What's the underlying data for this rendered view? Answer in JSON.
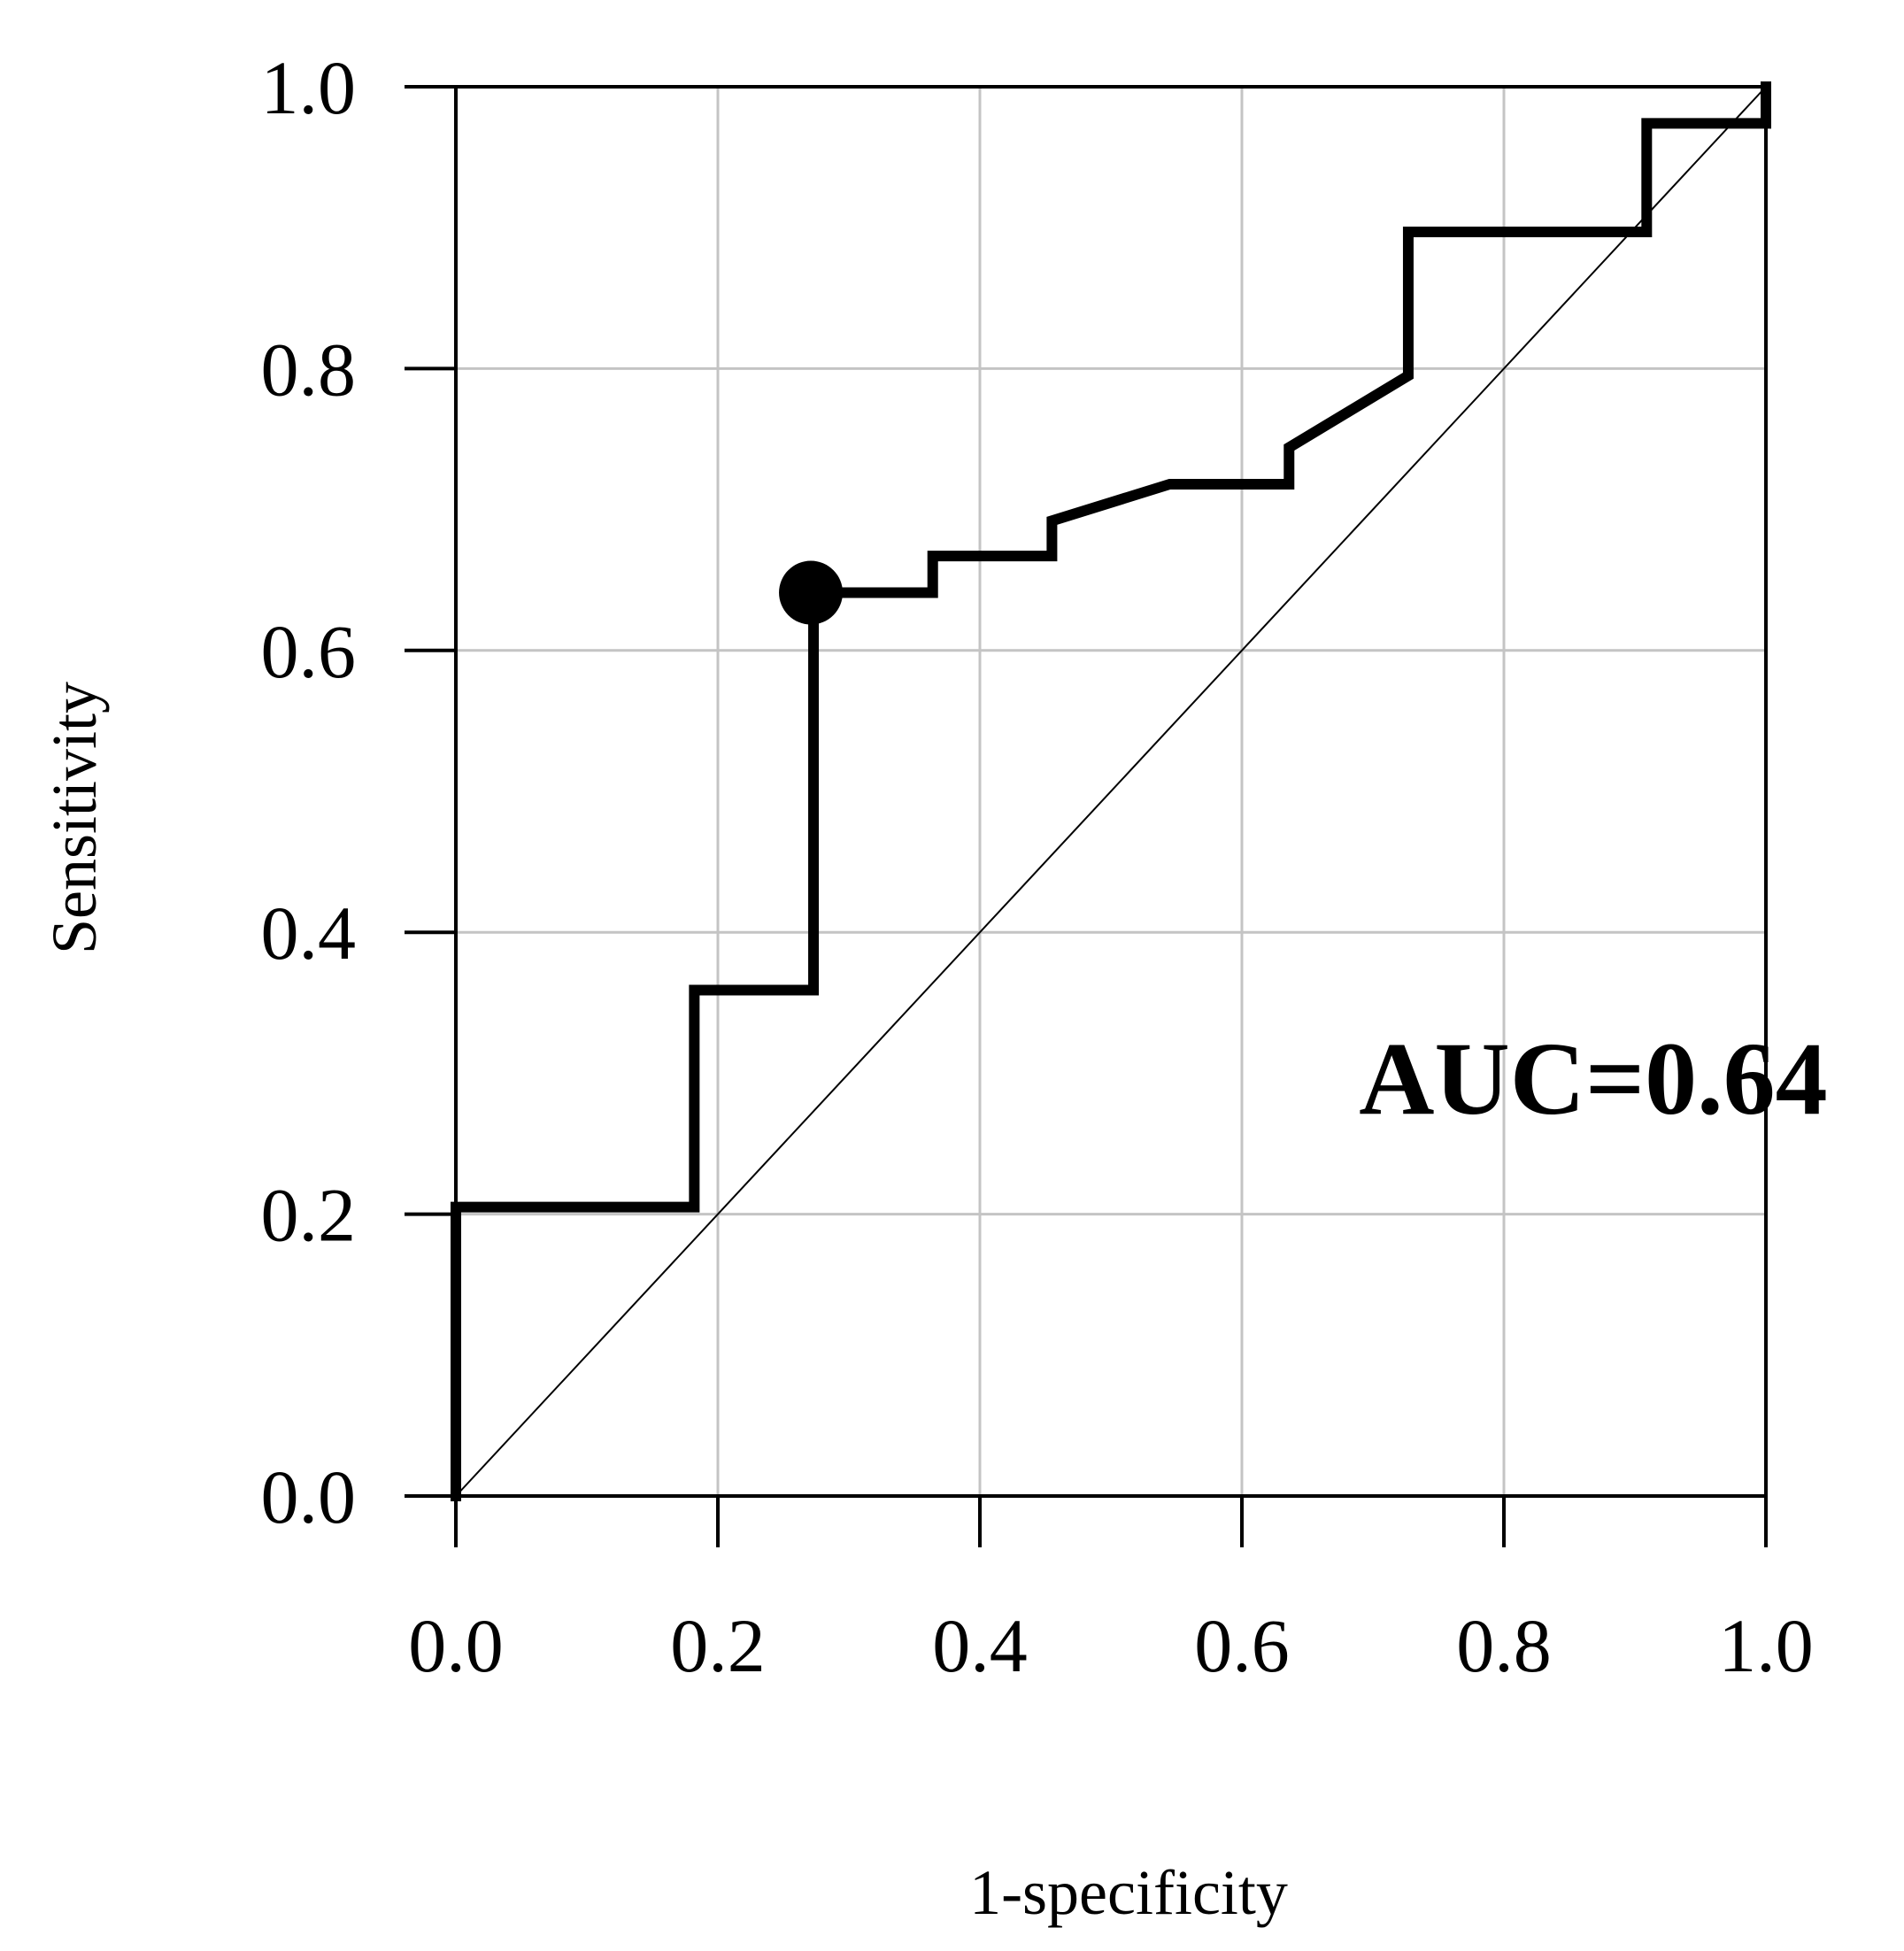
{
  "chart_data": {
    "type": "line",
    "xlabel": "1-specificity",
    "ylabel": "Sensitivity",
    "xlim": [
      0,
      1
    ],
    "ylim": [
      0,
      1
    ],
    "x_ticks": [
      "0.0",
      "0.2",
      "0.4",
      "0.6",
      "0.8",
      "1.0"
    ],
    "y_ticks": [
      "0.0",
      "0.2",
      "0.4",
      "0.6",
      "0.8",
      "1.0"
    ],
    "grid": true,
    "annotation": "AUC=0.64",
    "series": [
      {
        "x": [
          0,
          0,
          0.182,
          0.182,
          0.273,
          0.273,
          0.364,
          0.364,
          0.455,
          0.455,
          0.545,
          0.636,
          0.636,
          0.727,
          0.727,
          0.909,
          0.909,
          1.0,
          1.0
        ],
        "y": [
          0,
          0.205,
          0.205,
          0.359,
          0.359,
          0.641,
          0.641,
          0.667,
          0.667,
          0.692,
          0.718,
          0.718,
          0.744,
          0.795,
          0.897,
          0.897,
          0.974,
          0.974,
          1.0
        ]
      }
    ],
    "reference_line": {
      "x": [
        0,
        1
      ],
      "y": [
        0,
        1
      ]
    },
    "highlight_point": {
      "x": 0.273,
      "y": 0.641
    }
  }
}
